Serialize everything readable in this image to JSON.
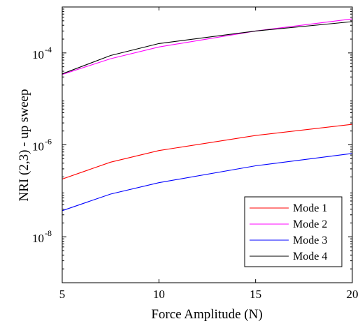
{
  "chart_data": {
    "type": "line",
    "xlabel": "Force Amplitude (N)",
    "ylabel": "NRI (2,3) - up sweep",
    "x": [
      5,
      7.5,
      10,
      15,
      20
    ],
    "xlim": [
      5,
      20
    ],
    "ylim": [
      1e-09,
      0.001
    ],
    "yscale": "log",
    "x_ticks": [
      5,
      10,
      15,
      20
    ],
    "x_tick_labels": [
      "5",
      "10",
      "15",
      "20"
    ],
    "y_ticks": [
      1e-08,
      1e-06,
      0.0001
    ],
    "y_tick_labels": [
      {
        "base": "10",
        "exp": "-8"
      },
      {
        "base": "10",
        "exp": "-6"
      },
      {
        "base": "10",
        "exp": "-4"
      }
    ],
    "grid": false,
    "legend_position": "bottom-right",
    "series": [
      {
        "name": "Mode 1",
        "color": "#ff0000",
        "values": [
          1.8e-07,
          4.2e-07,
          7.5e-07,
          1.6e-06,
          2.8e-06
        ]
      },
      {
        "name": "Mode 2",
        "color": "#ff00ff",
        "values": [
          3.4e-05,
          7.5e-05,
          0.000135,
          0.0003,
          0.00055
        ]
      },
      {
        "name": "Mode 3",
        "color": "#0000ff",
        "values": [
          3.7e-08,
          8.5e-08,
          1.5e-07,
          3.5e-07,
          6.5e-07
        ]
      },
      {
        "name": "Mode 4",
        "color": "#000000",
        "values": [
          3.5e-05,
          8.8e-05,
          0.00016,
          0.0003,
          0.00048
        ]
      }
    ]
  }
}
